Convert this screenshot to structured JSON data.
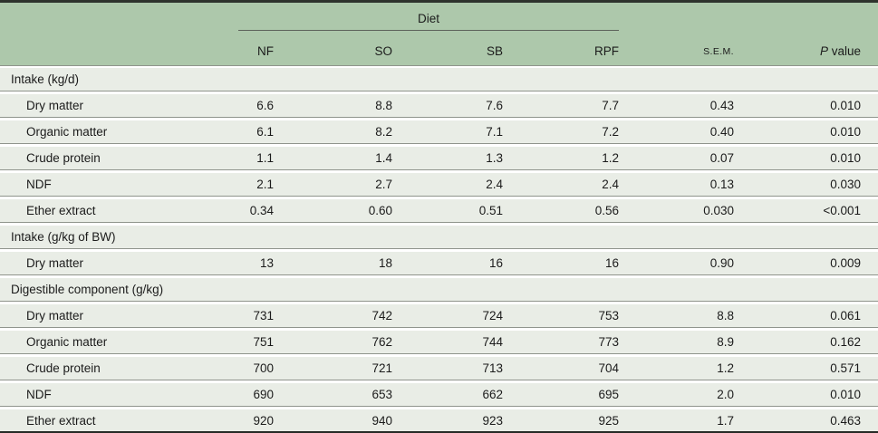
{
  "table": {
    "diet_group_label": "Diet",
    "diet_columns": [
      "NF",
      "SO",
      "SB",
      "RPF"
    ],
    "sem_label": "S.E.M.",
    "p_label_italic": "P",
    "p_label_rest": " value",
    "sections": [
      {
        "label": "Intake (kg/d)",
        "rows": [
          {
            "label": "Dry matter",
            "values": [
              "6.6",
              "8.8",
              "7.6",
              "7.7"
            ],
            "sem": "0.43",
            "p": "0.010"
          },
          {
            "label": "Organic matter",
            "values": [
              "6.1",
              "8.2",
              "7.1",
              "7.2"
            ],
            "sem": "0.40",
            "p": "0.010"
          },
          {
            "label": "Crude protein",
            "values": [
              "1.1",
              "1.4",
              "1.3",
              "1.2"
            ],
            "sem": "0.07",
            "p": "0.010"
          },
          {
            "label": "NDF",
            "values": [
              "2.1",
              "2.7",
              "2.4",
              "2.4"
            ],
            "sem": "0.13",
            "p": "0.030"
          },
          {
            "label": "Ether extract",
            "values": [
              "0.34",
              "0.60",
              "0.51",
              "0.56"
            ],
            "sem": "0.030",
            "p": "<0.001"
          }
        ]
      },
      {
        "label": "Intake (g/kg of BW)",
        "rows": [
          {
            "label": "Dry matter",
            "values": [
              "13",
              "18",
              "16",
              "16"
            ],
            "sem": "0.90",
            "p": "0.009"
          }
        ]
      },
      {
        "label": "Digestible component (g/kg)",
        "rows": [
          {
            "label": "Dry matter",
            "values": [
              "731",
              "742",
              "724",
              "753"
            ],
            "sem": "8.8",
            "p": "0.061"
          },
          {
            "label": "Organic matter",
            "values": [
              "751",
              "762",
              "744",
              "773"
            ],
            "sem": "8.9",
            "p": "0.162"
          },
          {
            "label": "Crude protein",
            "values": [
              "700",
              "721",
              "713",
              "704"
            ],
            "sem": "1.2",
            "p": "0.571"
          },
          {
            "label": "NDF",
            "values": [
              "690",
              "653",
              "662",
              "695"
            ],
            "sem": "2.0",
            "p": "0.010"
          },
          {
            "label": "Ether extract",
            "values": [
              "920",
              "940",
              "923",
              "925"
            ],
            "sem": "1.7",
            "p": "0.463"
          }
        ]
      }
    ],
    "colors": {
      "header_bg": "#adc8ab",
      "row_bg": "#e9ede6",
      "row_rule": "#8f948c",
      "outer_rule": "#2e332d",
      "diet_underline": "#5c615a",
      "text": "#1b1b1b"
    }
  }
}
